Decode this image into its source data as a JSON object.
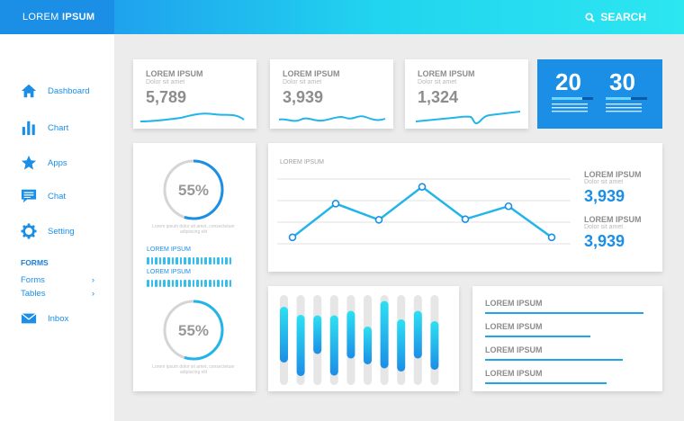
{
  "header": {
    "brand_light": "LOREM",
    "brand_bold": "IPSUM",
    "search_label": "SEARCH"
  },
  "sidebar": {
    "items": [
      {
        "label": "Dashboard",
        "icon": "home-icon"
      },
      {
        "label": "Chart",
        "icon": "bar-chart-icon"
      },
      {
        "label": "Apps",
        "icon": "star-icon"
      },
      {
        "label": "Chat",
        "icon": "chat-icon"
      },
      {
        "label": "Setting",
        "icon": "gear-icon"
      }
    ],
    "forms_heading": "FORMS",
    "sub_items": [
      {
        "label": "Forms",
        "icon": "chevron-right-icon"
      },
      {
        "label": "Tables",
        "icon": "chevron-right-icon"
      }
    ],
    "inbox": {
      "label": "Inbox",
      "icon": "mail-icon"
    }
  },
  "stats": [
    {
      "title": "LOREM IPSUM",
      "subtitle": "Dolor sit amet",
      "value": "5,789"
    },
    {
      "title": "LOREM IPSUM",
      "subtitle": "Dolor sit amet",
      "value": "3,939"
    },
    {
      "title": "LOREM IPSUM",
      "subtitle": "Dolor sit amet",
      "value": "1,324"
    }
  ],
  "blue_card": {
    "left_value": "20",
    "right_value": "30",
    "accent": "#1b8ee6"
  },
  "progress_card": {
    "donut_top": {
      "label": "55%",
      "fraction": 0.55
    },
    "donut_bottom": {
      "label": "55%",
      "fraction": 0.55
    },
    "caption": "Lorem ipsum dolor sit amet, consectetuer adipiscing elit",
    "bars": [
      {
        "label": "LOREM IPSUM"
      },
      {
        "label": "LOREM IPSUM"
      }
    ]
  },
  "line_panel": {
    "chart_title": "LOREM IPSUM",
    "side_stats": [
      {
        "title": "LOREM IPSUM",
        "subtitle": "Dolor sit amet",
        "value": "3,939"
      },
      {
        "title": "LOREM IPSUM",
        "subtitle": "Dolor sit amet",
        "value": "3,939"
      }
    ]
  },
  "chart_data": [
    {
      "type": "line",
      "title": "LOREM IPSUM",
      "values": [
        0.1,
        0.62,
        0.37,
        0.88,
        0.38,
        0.58,
        0.1
      ],
      "ylim": [
        0,
        1
      ],
      "grid": true,
      "color": "#21b5ea"
    },
    {
      "type": "bar",
      "title": "",
      "values": [
        0.62,
        0.68,
        0.43,
        0.67,
        0.53,
        0.42,
        0.75,
        0.58,
        0.53,
        0.54
      ],
      "ylim": [
        0,
        1
      ],
      "color": "#2ec6f0"
    }
  ],
  "list_card": {
    "items": [
      {
        "label": "LOREM IPSUM",
        "fraction": 0.98
      },
      {
        "label": "LOREM IPSUM",
        "fraction": 0.65
      },
      {
        "label": "LOREM IPSUM",
        "fraction": 0.85
      },
      {
        "label": "LOREM IPSUM",
        "fraction": 0.75
      }
    ]
  }
}
